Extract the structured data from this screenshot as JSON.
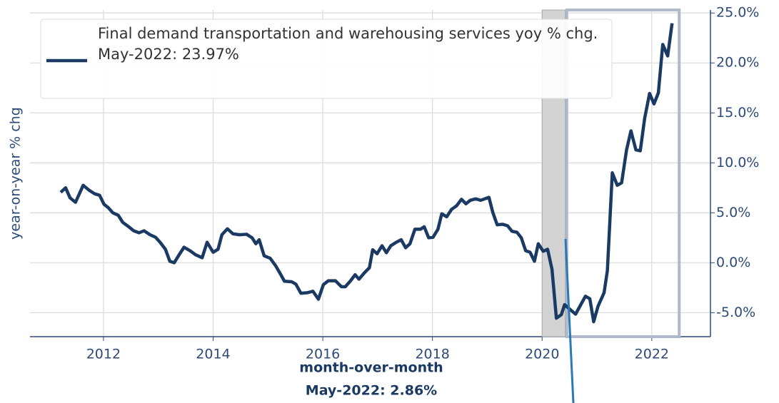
{
  "chart_data": {
    "type": "line",
    "y_label": "year-on-year % chg",
    "legend_note": "May-2022: 23.97%",
    "footer_title": "month-over-month",
    "footer_note": "May-2022: 2.86%",
    "xlim": [
      2010.66,
      2023.07
    ],
    "xticks": [
      2012,
      2014,
      2016,
      2018,
      2020,
      2022
    ],
    "ylim": [
      -7.4,
      25.3
    ],
    "yticks": [
      {
        "value": -5,
        "label": "-5.0%"
      },
      {
        "value": 0,
        "label": "0.0%"
      },
      {
        "value": 5,
        "label": "5.0%"
      },
      {
        "value": 10,
        "label": "10.0%"
      },
      {
        "value": 15,
        "label": "15.0%"
      },
      {
        "value": 20,
        "label": "20.0%"
      },
      {
        "value": 25,
        "label": "25.0%"
      }
    ],
    "grid": true,
    "recession": [
      2020.0,
      2020.42
    ],
    "highlight": [
      2020.45,
      2022.5
    ],
    "series": [
      {
        "name": "Final demand transportation and warehousing services yoy % chg.",
        "color": "#1b3a63",
        "x": [
          2011.22,
          2011.31,
          2011.39,
          2011.49,
          2011.63,
          2011.74,
          2011.84,
          2011.93,
          2012.01,
          2012.09,
          2012.17,
          2012.27,
          2012.35,
          2012.46,
          2012.55,
          2012.65,
          2012.74,
          2012.85,
          2012.95,
          2013.04,
          2013.13,
          2013.21,
          2013.29,
          2013.38,
          2013.47,
          2013.58,
          2013.68,
          2013.8,
          2013.89,
          2014.0,
          2014.09,
          2014.16,
          2014.26,
          2014.36,
          2014.48,
          2014.61,
          2014.71,
          2014.78,
          2014.84,
          2014.93,
          2015.04,
          2015.14,
          2015.23,
          2015.3,
          2015.43,
          2015.51,
          2015.6,
          2015.72,
          2015.82,
          2015.92,
          2016.01,
          2016.1,
          2016.23,
          2016.34,
          2016.41,
          2016.5,
          2016.59,
          2016.66,
          2016.76,
          2016.85,
          2016.91,
          2016.99,
          2017.08,
          2017.16,
          2017.24,
          2017.34,
          2017.43,
          2017.51,
          2017.59,
          2017.68,
          2017.78,
          2017.85,
          2017.93,
          2018.01,
          2018.1,
          2018.17,
          2018.26,
          2018.35,
          2018.44,
          2018.53,
          2018.61,
          2018.69,
          2018.79,
          2018.88,
          2019.03,
          2019.1,
          2019.18,
          2019.28,
          2019.37,
          2019.45,
          2019.54,
          2019.62,
          2019.7,
          2019.78,
          2019.86,
          2019.93,
          2020.02,
          2020.1,
          2020.18,
          2020.26,
          2020.35,
          2020.41,
          2020.61,
          2020.7,
          2020.79,
          2020.87,
          2020.94,
          2021.02,
          2021.13,
          2021.19,
          2021.28,
          2021.37,
          2021.45,
          2021.54,
          2021.62,
          2021.71,
          2021.79,
          2021.87,
          2021.96,
          2022.04,
          2022.12,
          2022.2,
          2022.29,
          2022.37
        ],
        "values": [
          7.05,
          7.5,
          6.5,
          6.05,
          7.75,
          7.25,
          6.9,
          6.75,
          5.85,
          5.5,
          5.0,
          4.75,
          4.05,
          3.6,
          3.2,
          3.0,
          3.2,
          2.8,
          2.55,
          2.0,
          1.35,
          0.15,
          0.0,
          0.8,
          1.55,
          1.2,
          0.8,
          0.5,
          2.05,
          1.05,
          1.35,
          2.8,
          3.4,
          2.9,
          2.8,
          2.85,
          2.5,
          1.9,
          2.3,
          0.7,
          0.45,
          -0.3,
          -1.15,
          -1.85,
          -1.9,
          -2.15,
          -3.05,
          -3.0,
          -2.85,
          -3.65,
          -2.2,
          -1.8,
          -1.8,
          -2.4,
          -2.4,
          -1.85,
          -1.2,
          -1.65,
          -1.0,
          -0.5,
          1.3,
          0.9,
          1.7,
          1.0,
          1.7,
          2.05,
          2.3,
          1.5,
          1.9,
          3.35,
          3.35,
          3.6,
          2.5,
          2.55,
          3.35,
          4.9,
          4.6,
          5.35,
          5.7,
          6.35,
          5.9,
          6.25,
          6.4,
          6.25,
          6.55,
          5.05,
          3.8,
          3.85,
          3.7,
          3.15,
          3.05,
          2.5,
          1.2,
          1.05,
          0.15,
          1.9,
          1.15,
          1.35,
          -0.65,
          -5.55,
          -5.2,
          -4.2,
          -5.15,
          -4.25,
          -3.35,
          -3.6,
          -5.9,
          -4.35,
          -3.0,
          -0.8,
          9.0,
          7.75,
          8.0,
          11.3,
          13.2,
          11.3,
          11.2,
          14.45,
          16.95,
          15.9,
          17.0,
          21.85,
          20.7,
          23.97
        ]
      }
    ]
  }
}
